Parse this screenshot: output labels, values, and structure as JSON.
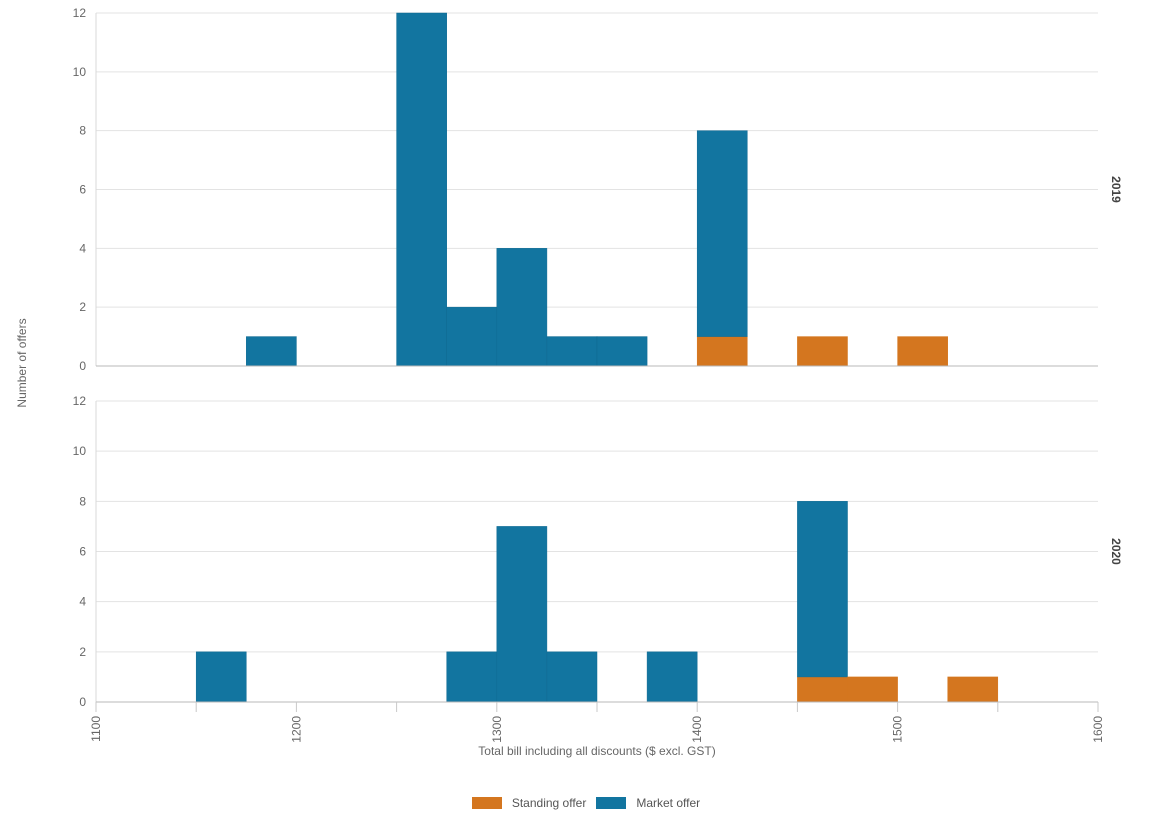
{
  "colors": {
    "standing": "#d4761f",
    "market": "#1275a0"
  },
  "legend": [
    {
      "key": "standing",
      "label": "Standing offer"
    },
    {
      "key": "market",
      "label": "Market offer"
    }
  ],
  "chart_data": {
    "type": "bar",
    "subtype": "stacked-histogram-faceted",
    "xlabel": "Total bill including all discounts ($ excl. GST)",
    "ylabel": "Number of offers",
    "xlim": [
      1100,
      1600
    ],
    "xticks": [
      1100,
      1200,
      1300,
      1400,
      1500,
      1600
    ],
    "bin_width": 25,
    "ylim": [
      0,
      12
    ],
    "yticks": [
      0,
      2,
      4,
      6,
      8,
      10,
      12
    ],
    "grid": true,
    "legend_position": "bottom",
    "facets": [
      {
        "label": "2019",
        "bins": [
          {
            "x0": 1175,
            "x1": 1200,
            "standing": 0,
            "market": 1
          },
          {
            "x0": 1250,
            "x1": 1275,
            "standing": 0,
            "market": 12
          },
          {
            "x0": 1275,
            "x1": 1300,
            "standing": 0,
            "market": 2
          },
          {
            "x0": 1300,
            "x1": 1325,
            "standing": 0,
            "market": 4
          },
          {
            "x0": 1325,
            "x1": 1350,
            "standing": 0,
            "market": 1
          },
          {
            "x0": 1350,
            "x1": 1375,
            "standing": 0,
            "market": 1
          },
          {
            "x0": 1400,
            "x1": 1425,
            "standing": 1,
            "market": 7
          },
          {
            "x0": 1450,
            "x1": 1475,
            "standing": 1,
            "market": 0
          },
          {
            "x0": 1500,
            "x1": 1525,
            "standing": 1,
            "market": 0
          }
        ]
      },
      {
        "label": "2020",
        "bins": [
          {
            "x0": 1150,
            "x1": 1175,
            "standing": 0,
            "market": 2
          },
          {
            "x0": 1275,
            "x1": 1300,
            "standing": 0,
            "market": 2
          },
          {
            "x0": 1300,
            "x1": 1325,
            "standing": 0,
            "market": 7
          },
          {
            "x0": 1325,
            "x1": 1350,
            "standing": 0,
            "market": 2
          },
          {
            "x0": 1375,
            "x1": 1400,
            "standing": 0,
            "market": 2
          },
          {
            "x0": 1450,
            "x1": 1475,
            "standing": 1,
            "market": 7
          },
          {
            "x0": 1475,
            "x1": 1500,
            "standing": 1,
            "market": 0
          },
          {
            "x0": 1525,
            "x1": 1550,
            "standing": 1,
            "market": 0
          }
        ]
      }
    ]
  }
}
